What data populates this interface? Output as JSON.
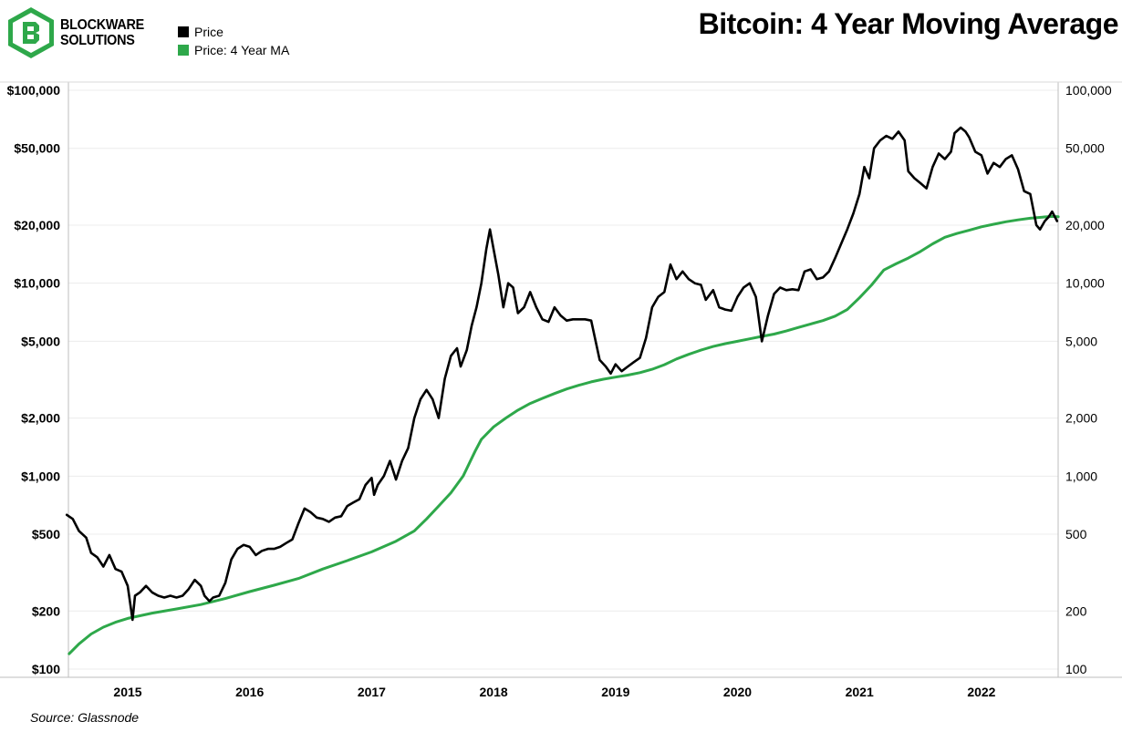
{
  "header": {
    "brand_line1": "BLOCKWARE",
    "brand_line2": "SOLUTIONS",
    "title": "Bitcoin: 4 Year Moving Average",
    "logo_icon": "blockware-logo-icon"
  },
  "legend": [
    {
      "label": "Price",
      "color": "#000000"
    },
    {
      "label": "Price: 4 Year MA",
      "color": "#2ea84a"
    }
  ],
  "footer": {
    "source": "Source: Glassnode"
  },
  "chart_data": {
    "type": "line",
    "title": "Bitcoin: 4 Year Moving Average",
    "xlabel": "",
    "ylabel": "",
    "yscale": "log",
    "ylim": [
      100,
      100000
    ],
    "xlim": [
      2014.5,
      2022.65
    ],
    "x_ticks": [
      2015,
      2016,
      2017,
      2018,
      2019,
      2020,
      2021,
      2022
    ],
    "x_tick_labels": [
      "2015",
      "2016",
      "2017",
      "2018",
      "2019",
      "2020",
      "2021",
      "2022"
    ],
    "y_ticks": [
      100,
      200,
      500,
      1000,
      2000,
      5000,
      10000,
      20000,
      50000,
      100000
    ],
    "y_tick_labels_left": [
      "$100",
      "$200",
      "$500",
      "$1,000",
      "$2,000",
      "$5,000",
      "$10,000",
      "$20,000",
      "$50,000",
      "$100,000"
    ],
    "y_tick_labels_right": [
      "100",
      "200",
      "500",
      "1,000",
      "2,000",
      "5,000",
      "10,000",
      "20,000",
      "50,000",
      "100,000"
    ],
    "series": [
      {
        "name": "Price",
        "color": "#000000",
        "points": [
          [
            2014.5,
            630
          ],
          [
            2014.55,
            600
          ],
          [
            2014.6,
            520
          ],
          [
            2014.66,
            480
          ],
          [
            2014.7,
            400
          ],
          [
            2014.75,
            380
          ],
          [
            2014.8,
            340
          ],
          [
            2014.85,
            390
          ],
          [
            2014.9,
            330
          ],
          [
            2014.95,
            320
          ],
          [
            2015.0,
            270
          ],
          [
            2015.04,
            180
          ],
          [
            2015.06,
            240
          ],
          [
            2015.1,
            250
          ],
          [
            2015.15,
            270
          ],
          [
            2015.2,
            250
          ],
          [
            2015.25,
            240
          ],
          [
            2015.3,
            235
          ],
          [
            2015.35,
            240
          ],
          [
            2015.4,
            235
          ],
          [
            2015.45,
            240
          ],
          [
            2015.5,
            260
          ],
          [
            2015.55,
            290
          ],
          [
            2015.6,
            270
          ],
          [
            2015.63,
            240
          ],
          [
            2015.67,
            225
          ],
          [
            2015.7,
            235
          ],
          [
            2015.75,
            240
          ],
          [
            2015.8,
            280
          ],
          [
            2015.85,
            370
          ],
          [
            2015.9,
            420
          ],
          [
            2015.95,
            440
          ],
          [
            2016.0,
            430
          ],
          [
            2016.05,
            390
          ],
          [
            2016.1,
            410
          ],
          [
            2016.15,
            420
          ],
          [
            2016.2,
            420
          ],
          [
            2016.25,
            430
          ],
          [
            2016.3,
            450
          ],
          [
            2016.35,
            470
          ],
          [
            2016.4,
            570
          ],
          [
            2016.45,
            680
          ],
          [
            2016.5,
            650
          ],
          [
            2016.55,
            610
          ],
          [
            2016.6,
            600
          ],
          [
            2016.65,
            580
          ],
          [
            2016.7,
            610
          ],
          [
            2016.75,
            620
          ],
          [
            2016.8,
            700
          ],
          [
            2016.85,
            730
          ],
          [
            2016.9,
            760
          ],
          [
            2016.95,
            900
          ],
          [
            2017.0,
            980
          ],
          [
            2017.02,
            800
          ],
          [
            2017.05,
            900
          ],
          [
            2017.1,
            1000
          ],
          [
            2017.15,
            1200
          ],
          [
            2017.18,
            1050
          ],
          [
            2017.2,
            960
          ],
          [
            2017.25,
            1200
          ],
          [
            2017.3,
            1400
          ],
          [
            2017.35,
            2000
          ],
          [
            2017.4,
            2500
          ],
          [
            2017.45,
            2800
          ],
          [
            2017.5,
            2500
          ],
          [
            2017.55,
            2000
          ],
          [
            2017.6,
            3200
          ],
          [
            2017.65,
            4200
          ],
          [
            2017.7,
            4600
          ],
          [
            2017.73,
            3700
          ],
          [
            2017.78,
            4500
          ],
          [
            2017.82,
            6000
          ],
          [
            2017.86,
            7500
          ],
          [
            2017.9,
            10000
          ],
          [
            2017.94,
            15000
          ],
          [
            2017.97,
            19000
          ],
          [
            2018.0,
            15000
          ],
          [
            2018.04,
            11000
          ],
          [
            2018.08,
            7500
          ],
          [
            2018.12,
            10000
          ],
          [
            2018.16,
            9500
          ],
          [
            2018.2,
            7000
          ],
          [
            2018.25,
            7500
          ],
          [
            2018.3,
            9000
          ],
          [
            2018.35,
            7500
          ],
          [
            2018.4,
            6500
          ],
          [
            2018.45,
            6300
          ],
          [
            2018.5,
            7500
          ],
          [
            2018.55,
            6800
          ],
          [
            2018.6,
            6400
          ],
          [
            2018.65,
            6500
          ],
          [
            2018.7,
            6500
          ],
          [
            2018.75,
            6500
          ],
          [
            2018.8,
            6400
          ],
          [
            2018.87,
            4000
          ],
          [
            2018.92,
            3700
          ],
          [
            2018.96,
            3400
          ],
          [
            2019.0,
            3800
          ],
          [
            2019.05,
            3500
          ],
          [
            2019.1,
            3700
          ],
          [
            2019.15,
            3900
          ],
          [
            2019.2,
            4100
          ],
          [
            2019.25,
            5200
          ],
          [
            2019.3,
            7500
          ],
          [
            2019.35,
            8500
          ],
          [
            2019.4,
            9000
          ],
          [
            2019.45,
            12500
          ],
          [
            2019.5,
            10500
          ],
          [
            2019.55,
            11500
          ],
          [
            2019.6,
            10500
          ],
          [
            2019.65,
            10000
          ],
          [
            2019.7,
            9800
          ],
          [
            2019.74,
            8200
          ],
          [
            2019.8,
            9200
          ],
          [
            2019.85,
            7500
          ],
          [
            2019.9,
            7300
          ],
          [
            2019.95,
            7200
          ],
          [
            2020.0,
            8500
          ],
          [
            2020.05,
            9500
          ],
          [
            2020.1,
            10000
          ],
          [
            2020.15,
            8500
          ],
          [
            2020.2,
            5000
          ],
          [
            2020.25,
            6800
          ],
          [
            2020.3,
            8800
          ],
          [
            2020.35,
            9500
          ],
          [
            2020.4,
            9200
          ],
          [
            2020.45,
            9300
          ],
          [
            2020.5,
            9200
          ],
          [
            2020.55,
            11500
          ],
          [
            2020.6,
            11800
          ],
          [
            2020.65,
            10500
          ],
          [
            2020.7,
            10700
          ],
          [
            2020.75,
            11500
          ],
          [
            2020.8,
            13500
          ],
          [
            2020.85,
            16000
          ],
          [
            2020.9,
            19000
          ],
          [
            2020.95,
            23000
          ],
          [
            2021.0,
            29000
          ],
          [
            2021.04,
            40000
          ],
          [
            2021.08,
            35000
          ],
          [
            2021.12,
            50000
          ],
          [
            2021.17,
            55000
          ],
          [
            2021.22,
            58000
          ],
          [
            2021.27,
            56000
          ],
          [
            2021.32,
            61000
          ],
          [
            2021.37,
            55000
          ],
          [
            2021.4,
            38000
          ],
          [
            2021.45,
            35000
          ],
          [
            2021.5,
            33000
          ],
          [
            2021.55,
            31000
          ],
          [
            2021.6,
            40000
          ],
          [
            2021.65,
            47000
          ],
          [
            2021.7,
            44000
          ],
          [
            2021.75,
            48000
          ],
          [
            2021.78,
            60000
          ],
          [
            2021.83,
            64000
          ],
          [
            2021.87,
            61000
          ],
          [
            2021.9,
            57000
          ],
          [
            2021.95,
            48000
          ],
          [
            2022.0,
            46000
          ],
          [
            2022.05,
            37000
          ],
          [
            2022.1,
            42000
          ],
          [
            2022.15,
            40000
          ],
          [
            2022.2,
            44000
          ],
          [
            2022.25,
            46000
          ],
          [
            2022.3,
            39000
          ],
          [
            2022.35,
            30000
          ],
          [
            2022.4,
            29000
          ],
          [
            2022.45,
            20000
          ],
          [
            2022.48,
            19000
          ],
          [
            2022.52,
            21000
          ],
          [
            2022.55,
            22000
          ],
          [
            2022.58,
            23500
          ],
          [
            2022.62,
            21000
          ]
        ]
      },
      {
        "name": "Price: 4 Year MA",
        "color": "#2ea84a",
        "points": [
          [
            2014.52,
            120
          ],
          [
            2014.6,
            135
          ],
          [
            2014.7,
            152
          ],
          [
            2014.8,
            165
          ],
          [
            2014.9,
            175
          ],
          [
            2015.0,
            183
          ],
          [
            2015.2,
            195
          ],
          [
            2015.4,
            205
          ],
          [
            2015.6,
            216
          ],
          [
            2015.8,
            232
          ],
          [
            2016.0,
            252
          ],
          [
            2016.2,
            272
          ],
          [
            2016.4,
            295
          ],
          [
            2016.6,
            330
          ],
          [
            2016.8,
            365
          ],
          [
            2017.0,
            405
          ],
          [
            2017.2,
            460
          ],
          [
            2017.35,
            520
          ],
          [
            2017.45,
            600
          ],
          [
            2017.55,
            700
          ],
          [
            2017.65,
            820
          ],
          [
            2017.75,
            1000
          ],
          [
            2017.85,
            1350
          ],
          [
            2017.9,
            1550
          ],
          [
            2018.0,
            1800
          ],
          [
            2018.1,
            2000
          ],
          [
            2018.2,
            2200
          ],
          [
            2018.3,
            2380
          ],
          [
            2018.4,
            2530
          ],
          [
            2018.5,
            2680
          ],
          [
            2018.6,
            2830
          ],
          [
            2018.7,
            2960
          ],
          [
            2018.8,
            3080
          ],
          [
            2018.9,
            3180
          ],
          [
            2019.0,
            3260
          ],
          [
            2019.1,
            3340
          ],
          [
            2019.2,
            3440
          ],
          [
            2019.3,
            3580
          ],
          [
            2019.4,
            3780
          ],
          [
            2019.5,
            4050
          ],
          [
            2019.6,
            4280
          ],
          [
            2019.7,
            4500
          ],
          [
            2019.8,
            4700
          ],
          [
            2019.9,
            4860
          ],
          [
            2020.0,
            5000
          ],
          [
            2020.1,
            5150
          ],
          [
            2020.2,
            5300
          ],
          [
            2020.3,
            5450
          ],
          [
            2020.4,
            5650
          ],
          [
            2020.5,
            5900
          ],
          [
            2020.6,
            6150
          ],
          [
            2020.7,
            6400
          ],
          [
            2020.8,
            6750
          ],
          [
            2020.9,
            7300
          ],
          [
            2021.0,
            8400
          ],
          [
            2021.1,
            9800
          ],
          [
            2021.2,
            11700
          ],
          [
            2021.3,
            12600
          ],
          [
            2021.4,
            13500
          ],
          [
            2021.5,
            14600
          ],
          [
            2021.6,
            16000
          ],
          [
            2021.7,
            17300
          ],
          [
            2021.8,
            18100
          ],
          [
            2021.9,
            18800
          ],
          [
            2022.0,
            19600
          ],
          [
            2022.1,
            20200
          ],
          [
            2022.2,
            20800
          ],
          [
            2022.3,
            21300
          ],
          [
            2022.4,
            21700
          ],
          [
            2022.5,
            22000
          ],
          [
            2022.58,
            22200
          ],
          [
            2022.63,
            22100
          ]
        ]
      }
    ]
  }
}
